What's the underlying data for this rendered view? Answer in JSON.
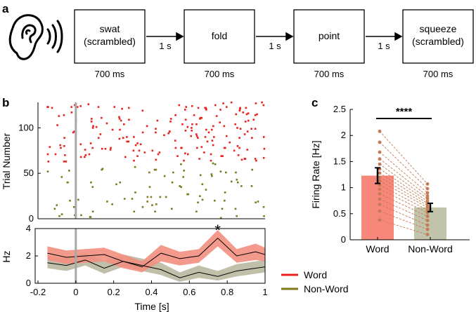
{
  "panel_labels": {
    "a": "a",
    "b": "b",
    "c": "c"
  },
  "panel_a": {
    "icon": "ear-icon",
    "boxes": [
      {
        "line1": "swat",
        "line2": "(scrambled)",
        "duration": "700 ms"
      },
      {
        "line1": "fold",
        "line2": "",
        "duration": "700 ms"
      },
      {
        "line1": "point",
        "line2": "",
        "duration": "700 ms"
      },
      {
        "line1": "squeeze",
        "line2": "(scrambled)",
        "duration": "700 ms"
      }
    ],
    "gap_label": "1 s"
  },
  "colors": {
    "word": "#e8221d",
    "nonword": "#7d7a1c",
    "word_fill": "#f28f80",
    "nonword_fill": "#b9b8a0",
    "bar_word": "#f7877a",
    "bar_nonword": "#c2c3ab",
    "dots": "#c47a52",
    "stim_line": "#a8a8a8"
  },
  "chart_data": [
    {
      "type": "scatter",
      "name": "raster",
      "ylabel": "Trial Number",
      "xlim": [
        -0.2,
        1
      ],
      "ylim": [
        0,
        128
      ],
      "yticks": [
        0,
        50,
        100
      ],
      "stimulus_onset": 0,
      "series": [
        {
          "name": "Word",
          "trials": [
            63,
            128
          ]
        },
        {
          "name": "Non-Word",
          "trials": [
            1,
            62
          ]
        }
      ]
    },
    {
      "type": "line",
      "name": "psth",
      "xlabel": "Time [s]",
      "ylabel": "Hz",
      "xlim": [
        -0.2,
        1
      ],
      "ylim": [
        0,
        4
      ],
      "xticks": [
        -0.2,
        0,
        0.2,
        0.4,
        0.6,
        0.8,
        1
      ],
      "xticklabels": [
        "-0.2",
        "0",
        "0.2",
        "0.4",
        "0.6",
        "0.8",
        "1"
      ],
      "yticks": [
        0,
        2,
        4
      ],
      "x": [
        -0.15,
        -0.05,
        0.05,
        0.15,
        0.25,
        0.35,
        0.45,
        0.55,
        0.65,
        0.75,
        0.85,
        0.95,
        1.0
      ],
      "series": [
        {
          "name": "Word",
          "values": [
            2.2,
            1.9,
            2.0,
            2.1,
            1.6,
            1.2,
            2.2,
            1.8,
            2.0,
            3.3,
            2.0,
            2.3,
            2.1
          ],
          "lower": [
            1.7,
            1.4,
            1.5,
            1.6,
            1.1,
            0.8,
            1.6,
            1.3,
            1.5,
            2.7,
            1.5,
            1.7,
            1.6
          ],
          "upper": [
            2.7,
            2.4,
            2.5,
            2.6,
            2.1,
            1.6,
            2.8,
            2.3,
            2.5,
            3.9,
            2.5,
            2.9,
            2.6
          ]
        },
        {
          "name": "Non-Word",
          "values": [
            1.5,
            1.3,
            1.7,
            1.1,
            1.6,
            1.3,
            1.0,
            0.4,
            0.8,
            0.5,
            0.9,
            1.1,
            1.2
          ],
          "lower": [
            1.1,
            0.9,
            1.3,
            0.7,
            1.2,
            0.9,
            0.6,
            0.1,
            0.4,
            0.2,
            0.5,
            0.7,
            0.8
          ],
          "upper": [
            2.0,
            1.8,
            2.2,
            1.6,
            2.1,
            1.8,
            1.5,
            0.8,
            1.3,
            0.9,
            1.4,
            1.6,
            1.7
          ]
        }
      ],
      "annotation": {
        "text": "*",
        "x": 0.75
      },
      "legend": [
        {
          "name": "Word",
          "color_key": "word"
        },
        {
          "name": "Non-Word",
          "color_key": "nonword"
        }
      ],
      "legend_position": "right"
    },
    {
      "type": "bar",
      "name": "firing-rate",
      "categories": [
        "Word",
        "Non-Word"
      ],
      "values": [
        1.23,
        0.62
      ],
      "errors": [
        0.15,
        0.08
      ],
      "ylabel": "Firing Rate [Hz]",
      "ylim": [
        0,
        2.5
      ],
      "yticks": [
        0,
        0.5,
        1,
        1.5,
        2,
        2.5
      ],
      "yticklabels": [
        "0",
        "0.5",
        "1",
        "1.5",
        "2",
        "2.5"
      ],
      "pairs": [
        [
          2.08,
          1.07
        ],
        [
          1.87,
          0.98
        ],
        [
          1.68,
          0.9
        ],
        [
          1.55,
          0.84
        ],
        [
          1.45,
          0.79
        ],
        [
          1.36,
          0.74
        ],
        [
          1.28,
          0.7
        ],
        [
          1.2,
          0.66
        ],
        [
          1.13,
          0.62
        ],
        [
          1.05,
          0.57
        ],
        [
          0.97,
          0.52
        ],
        [
          0.88,
          0.45
        ],
        [
          0.78,
          0.37
        ],
        [
          0.68,
          0.28
        ],
        [
          0.55,
          0.2
        ],
        [
          0.38,
          0.1
        ]
      ],
      "significance": "****"
    }
  ]
}
